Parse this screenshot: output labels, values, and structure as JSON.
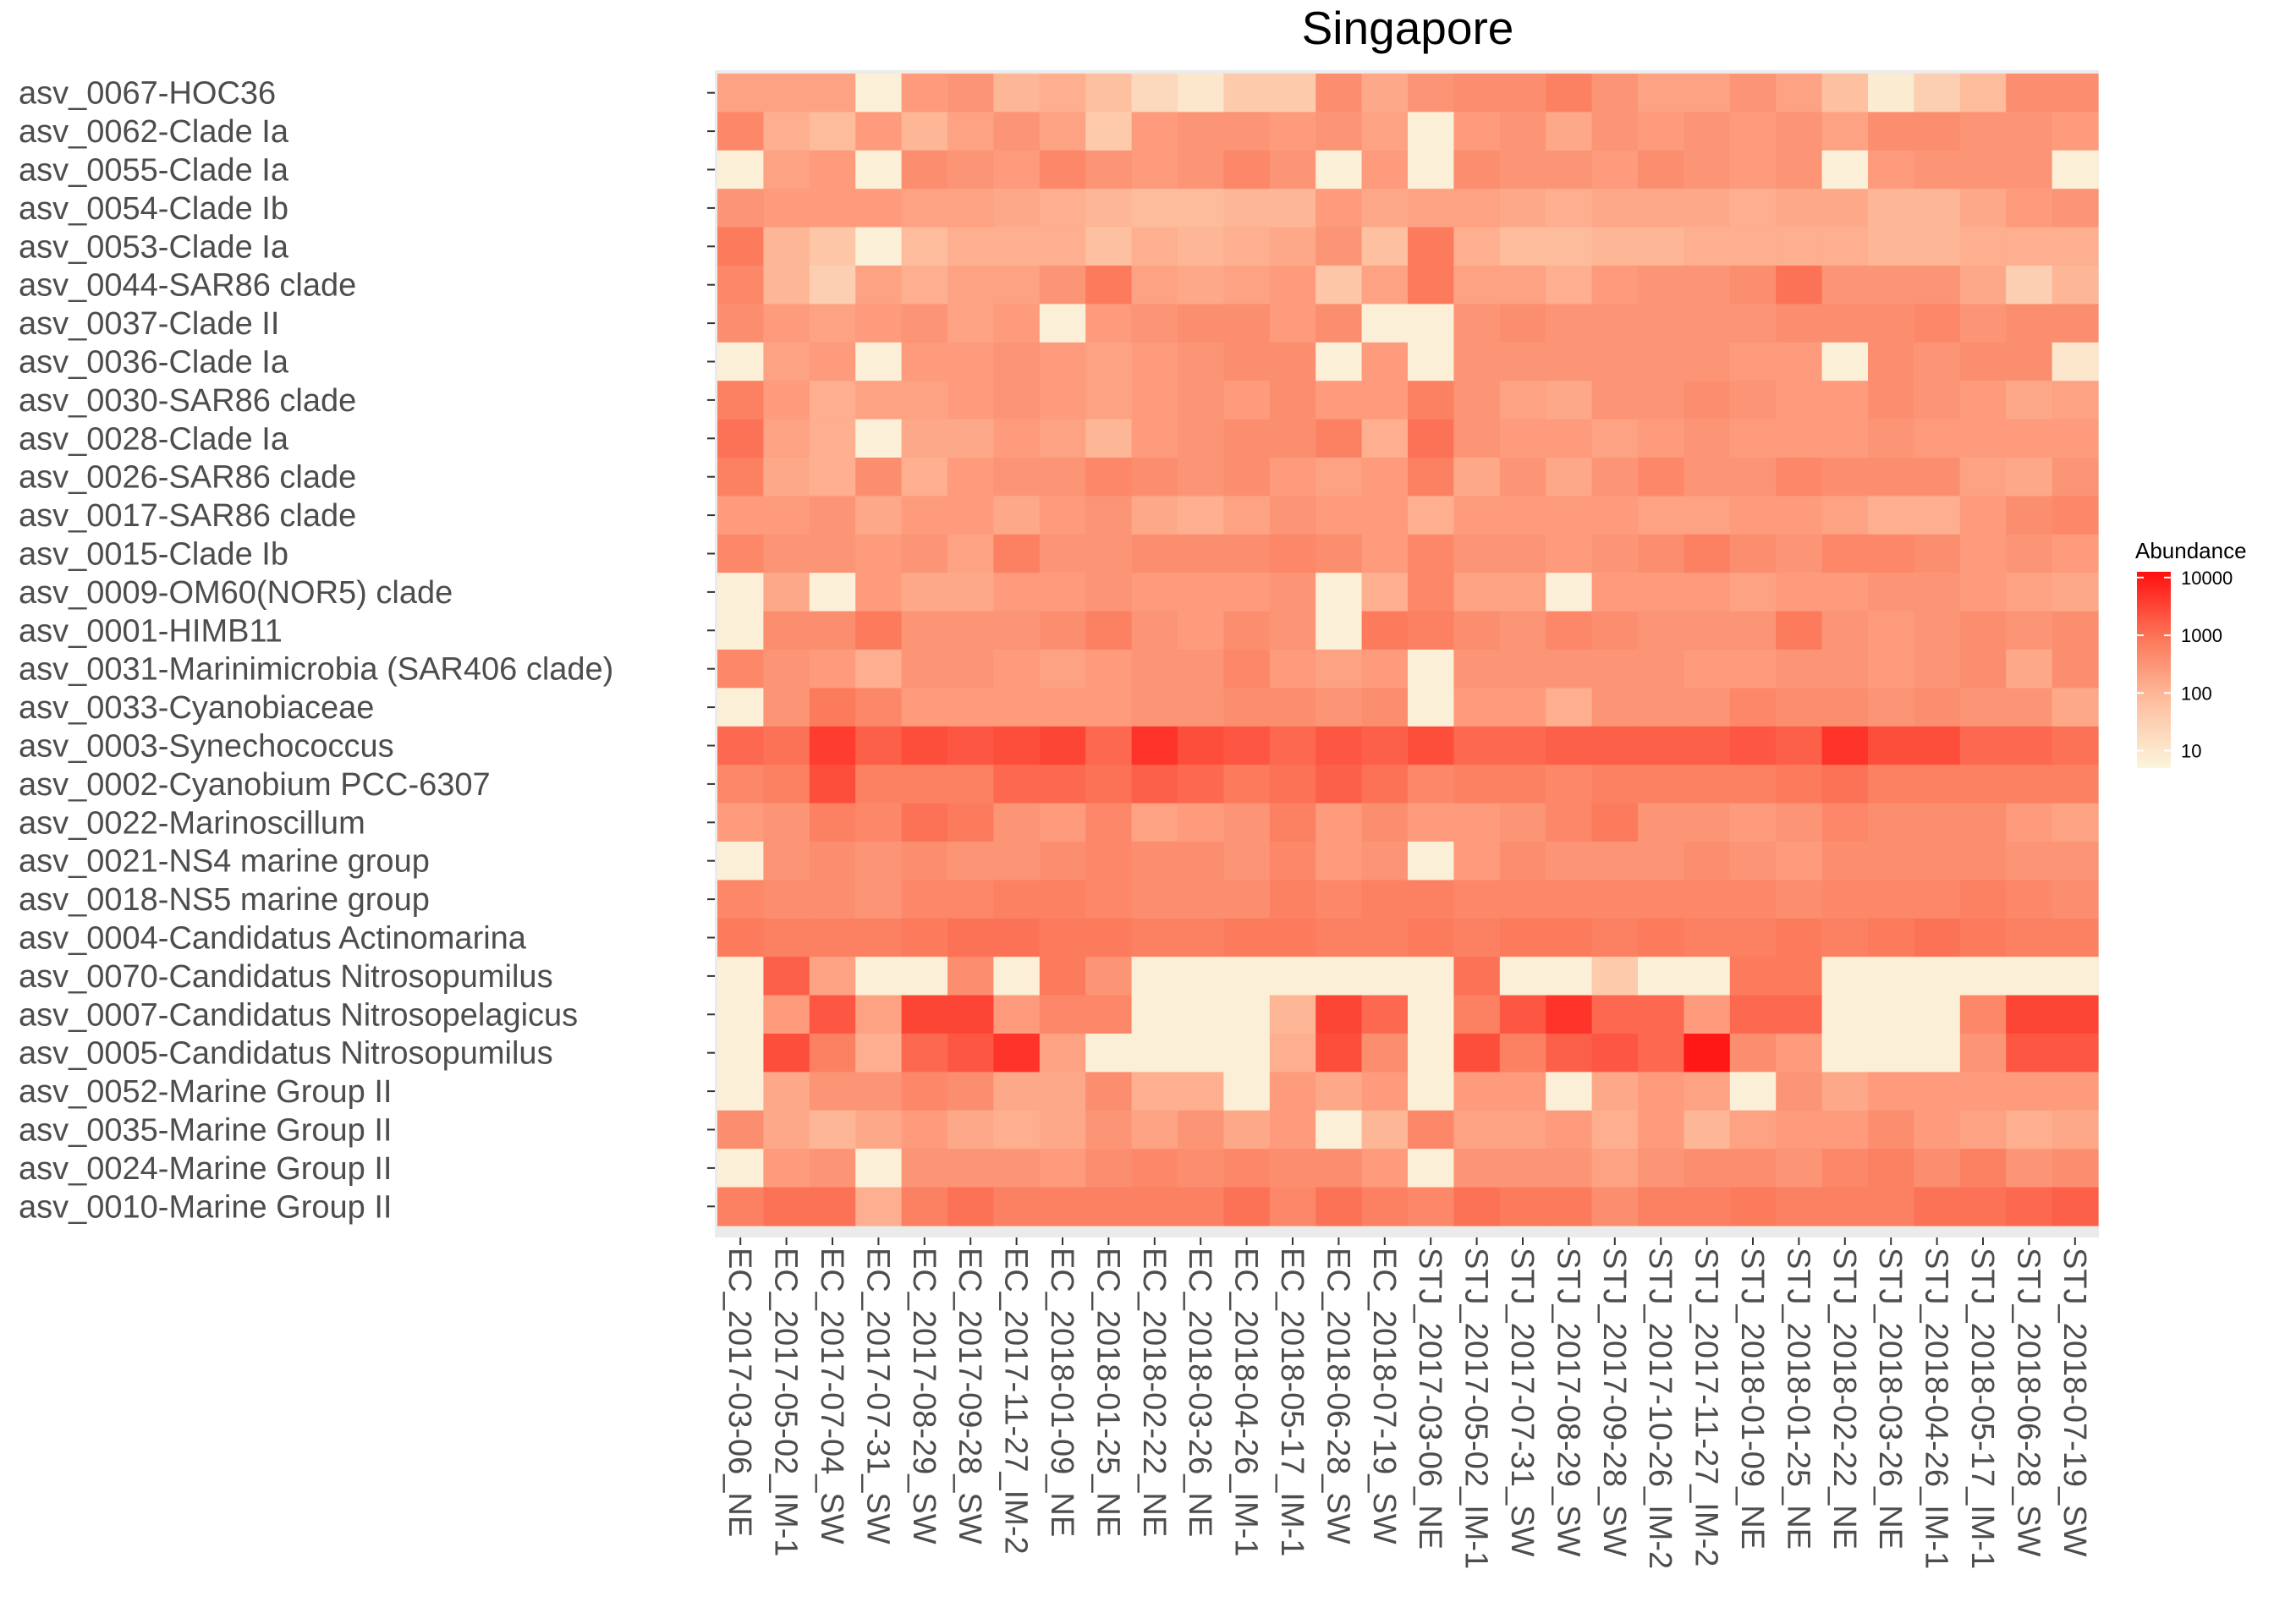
{
  "chart_data": {
    "type": "heatmap",
    "title": "Singapore",
    "xlabel": "",
    "ylabel": "",
    "rows": [
      "asv_0067-HOC36",
      "asv_0062-Clade Ia",
      "asv_0055-Clade Ia",
      "asv_0054-Clade Ib",
      "asv_0053-Clade Ia",
      "asv_0044-SAR86 clade",
      "asv_0037-Clade II",
      "asv_0036-Clade Ia",
      "asv_0030-SAR86 clade",
      "asv_0028-Clade Ia",
      "asv_0026-SAR86 clade",
      "asv_0017-SAR86 clade",
      "asv_0015-Clade Ib",
      "asv_0009-OM60(NOR5) clade",
      "asv_0001-HIMB11",
      "asv_0031-Marinimicrobia (SAR406 clade)",
      "asv_0033-Cyanobiaceae",
      "asv_0003-Synechococcus",
      "asv_0002-Cyanobium PCC-6307",
      "asv_0022-Marinoscillum",
      "asv_0021-NS4 marine group",
      "asv_0018-NS5 marine group",
      "asv_0004-Candidatus Actinomarina",
      "asv_0070-Candidatus Nitrosopumilus",
      "asv_0007-Candidatus Nitrosopelagicus",
      "asv_0005-Candidatus Nitrosopumilus",
      "asv_0052-Marine Group II",
      "asv_0035-Marine Group II",
      "asv_0024-Marine Group II",
      "asv_0010-Marine Group II"
    ],
    "columns": [
      "EC_2017-03-06_NE",
      "EC_2017-05-02_IM-1",
      "EC_2017-07-04_SW",
      "EC_2017-07-31_SW",
      "EC_2017-08-29_SW",
      "EC_2017-09-28_SW",
      "EC_2017-11-27_IM-2",
      "EC_2018-01-09_NE",
      "EC_2018-01-25_NE",
      "EC_2018-02-22_NE",
      "EC_2018-03-26_NE",
      "EC_2018-04-26_IM-1",
      "EC_2018-05-17_IM-1",
      "EC_2018-06-28_SW",
      "EC_2018-07-19_SW",
      "STJ_2017-03-06_NE",
      "STJ_2017-05-02_IM-1",
      "STJ_2017-07-31_SW",
      "STJ_2017-08-29_SW",
      "STJ_2017-09-28_SW",
      "STJ_2017-10-26_IM-2",
      "STJ_2017-11-27_IM-2",
      "STJ_2018-01-09_NE",
      "STJ_2018-01-25_NE",
      "STJ_2018-02-22_NE",
      "STJ_2018-03-26_NE",
      "STJ_2018-04-26_IM-1",
      "STJ_2018-05-17_IM-1",
      "STJ_2018-06-28_SW",
      "STJ_2018-07-19_SW"
    ],
    "values_log10": [
      [
        2.3,
        2.3,
        2.3,
        0.8,
        2.4,
        2.5,
        2.0,
        2.1,
        1.8,
        1.3,
        1.0,
        1.6,
        1.6,
        2.6,
        2.2,
        2.5,
        2.6,
        2.6,
        2.8,
        2.5,
        2.3,
        2.3,
        2.5,
        2.3,
        1.8,
        0.9,
        1.5,
        1.9,
        2.6,
        2.6
      ],
      [
        2.7,
        2.1,
        1.9,
        2.4,
        2.0,
        2.3,
        2.5,
        2.3,
        1.6,
        2.4,
        2.5,
        2.5,
        2.4,
        2.5,
        2.3,
        0.8,
        2.4,
        2.5,
        2.2,
        2.5,
        2.4,
        2.5,
        2.4,
        2.5,
        2.3,
        2.6,
        2.6,
        2.5,
        2.5,
        2.4
      ],
      [
        0.8,
        2.3,
        2.4,
        0.8,
        2.6,
        2.5,
        2.4,
        2.7,
        2.5,
        2.4,
        2.5,
        2.7,
        2.5,
        0.8,
        2.4,
        0.8,
        2.6,
        2.5,
        2.5,
        2.4,
        2.6,
        2.5,
        2.4,
        2.5,
        0.8,
        2.4,
        2.5,
        2.5,
        2.5,
        0.8
      ],
      [
        2.5,
        2.4,
        2.4,
        2.4,
        2.3,
        2.3,
        2.2,
        2.1,
        2.0,
        1.9,
        1.9,
        2.0,
        2.0,
        2.4,
        2.2,
        2.3,
        2.3,
        2.2,
        2.1,
        2.2,
        2.2,
        2.2,
        2.1,
        2.2,
        2.2,
        2.0,
        2.0,
        2.2,
        2.4,
        2.5
      ],
      [
        2.9,
        2.0,
        1.7,
        0.8,
        1.9,
        2.1,
        2.1,
        2.1,
        1.8,
        2.1,
        2.0,
        2.1,
        2.2,
        2.5,
        1.8,
        2.9,
        2.1,
        1.9,
        1.9,
        2.0,
        2.0,
        2.1,
        2.1,
        2.1,
        2.1,
        2.0,
        2.0,
        2.1,
        2.1,
        2.1
      ],
      [
        2.7,
        2.0,
        1.5,
        2.3,
        2.1,
        2.3,
        2.3,
        2.5,
        2.9,
        2.3,
        2.2,
        2.3,
        2.4,
        1.7,
        2.3,
        2.9,
        2.3,
        2.3,
        2.1,
        2.4,
        2.5,
        2.5,
        2.6,
        3.0,
        2.5,
        2.5,
        2.5,
        2.2,
        1.5,
        2.0
      ],
      [
        2.6,
        2.4,
        2.3,
        2.4,
        2.5,
        2.3,
        2.4,
        0.8,
        2.4,
        2.5,
        2.6,
        2.6,
        2.4,
        2.6,
        0.8,
        0.8,
        2.5,
        2.6,
        2.5,
        2.5,
        2.5,
        2.5,
        2.5,
        2.6,
        2.6,
        2.6,
        2.7,
        2.5,
        2.6,
        2.6
      ],
      [
        0.8,
        2.3,
        2.4,
        0.8,
        2.4,
        2.4,
        2.5,
        2.4,
        2.3,
        2.4,
        2.5,
        2.6,
        2.6,
        0.8,
        2.4,
        0.8,
        2.5,
        2.5,
        2.5,
        2.5,
        2.5,
        2.5,
        2.4,
        2.4,
        0.8,
        2.6,
        2.5,
        2.6,
        2.6,
        1.0
      ],
      [
        2.8,
        2.4,
        2.1,
        2.3,
        2.3,
        2.4,
        2.5,
        2.4,
        2.3,
        2.4,
        2.5,
        2.4,
        2.6,
        2.4,
        2.4,
        2.8,
        2.5,
        2.3,
        2.2,
        2.5,
        2.5,
        2.6,
        2.5,
        2.4,
        2.4,
        2.6,
        2.5,
        2.4,
        2.2,
        2.3
      ],
      [
        3.0,
        2.3,
        2.1,
        0.8,
        2.2,
        2.2,
        2.4,
        2.3,
        2.0,
        2.4,
        2.5,
        2.6,
        2.6,
        2.8,
        2.1,
        3.0,
        2.5,
        2.4,
        2.4,
        2.3,
        2.4,
        2.5,
        2.4,
        2.4,
        2.4,
        2.5,
        2.4,
        2.4,
        2.4,
        2.4
      ],
      [
        2.8,
        2.2,
        2.1,
        2.6,
        2.1,
        2.4,
        2.5,
        2.5,
        2.7,
        2.6,
        2.5,
        2.6,
        2.4,
        2.3,
        2.4,
        2.8,
        2.2,
        2.5,
        2.2,
        2.5,
        2.7,
        2.5,
        2.5,
        2.7,
        2.6,
        2.6,
        2.6,
        2.3,
        2.2,
        2.5
      ],
      [
        2.4,
        2.4,
        2.5,
        2.2,
        2.4,
        2.4,
        2.2,
        2.4,
        2.5,
        2.2,
        2.1,
        2.3,
        2.5,
        2.4,
        2.4,
        2.1,
        2.4,
        2.4,
        2.4,
        2.4,
        2.3,
        2.3,
        2.4,
        2.4,
        2.3,
        2.1,
        2.1,
        2.4,
        2.6,
        2.7
      ],
      [
        2.7,
        2.5,
        2.5,
        2.4,
        2.5,
        2.3,
        2.8,
        2.5,
        2.5,
        2.6,
        2.6,
        2.6,
        2.7,
        2.6,
        2.4,
        2.7,
        2.5,
        2.5,
        2.4,
        2.5,
        2.6,
        2.8,
        2.6,
        2.5,
        2.7,
        2.7,
        2.6,
        2.4,
        2.5,
        2.4
      ],
      [
        0.8,
        2.2,
        0.8,
        2.4,
        2.2,
        2.2,
        2.4,
        2.4,
        2.5,
        2.4,
        2.4,
        2.4,
        2.5,
        0.8,
        2.1,
        2.7,
        2.3,
        2.3,
        0.8,
        2.4,
        2.4,
        2.4,
        2.3,
        2.4,
        2.4,
        2.5,
        2.5,
        2.4,
        2.3,
        2.2
      ],
      [
        0.8,
        2.6,
        2.6,
        2.9,
        2.5,
        2.5,
        2.5,
        2.6,
        2.8,
        2.5,
        2.4,
        2.6,
        2.5,
        0.8,
        2.9,
        2.8,
        2.6,
        2.5,
        2.7,
        2.6,
        2.5,
        2.5,
        2.5,
        2.9,
        2.5,
        2.4,
        2.5,
        2.6,
        2.5,
        2.6
      ],
      [
        2.7,
        2.5,
        2.4,
        2.1,
        2.5,
        2.5,
        2.4,
        2.3,
        2.4,
        2.5,
        2.5,
        2.7,
        2.4,
        2.3,
        2.4,
        0.8,
        2.5,
        2.5,
        2.5,
        2.5,
        2.5,
        2.4,
        2.4,
        2.5,
        2.5,
        2.4,
        2.5,
        2.6,
        2.2,
        2.6
      ],
      [
        0.8,
        2.5,
        2.9,
        2.7,
        2.4,
        2.4,
        2.4,
        2.4,
        2.4,
        2.5,
        2.5,
        2.6,
        2.6,
        2.5,
        2.6,
        0.8,
        2.4,
        2.4,
        2.1,
        2.5,
        2.5,
        2.5,
        2.7,
        2.6,
        2.6,
        2.5,
        2.6,
        2.5,
        2.5,
        2.2
      ],
      [
        3.1,
        3.0,
        3.6,
        3.2,
        3.4,
        3.3,
        3.4,
        3.5,
        3.1,
        3.7,
        3.4,
        3.3,
        3.1,
        3.3,
        3.2,
        3.4,
        3.1,
        3.1,
        3.2,
        3.2,
        3.2,
        3.2,
        3.3,
        3.2,
        3.7,
        3.4,
        3.4,
        3.1,
        3.1,
        3.0
      ],
      [
        2.7,
        2.8,
        3.4,
        2.8,
        2.8,
        2.8,
        3.1,
        3.1,
        3.0,
        3.2,
        3.1,
        2.9,
        3.0,
        3.2,
        3.0,
        2.7,
        2.8,
        2.8,
        2.7,
        2.8,
        2.8,
        2.8,
        2.8,
        2.9,
        3.0,
        2.8,
        2.8,
        2.8,
        2.8,
        2.8
      ],
      [
        2.4,
        2.5,
        2.8,
        2.7,
        3.0,
        2.9,
        2.5,
        2.4,
        2.7,
        2.3,
        2.4,
        2.5,
        2.8,
        2.4,
        2.6,
        2.4,
        2.4,
        2.5,
        2.7,
        2.9,
        2.5,
        2.5,
        2.4,
        2.5,
        2.7,
        2.6,
        2.6,
        2.6,
        2.4,
        2.3
      ],
      [
        0.8,
        2.5,
        2.6,
        2.5,
        2.6,
        2.5,
        2.5,
        2.6,
        2.7,
        2.6,
        2.6,
        2.5,
        2.7,
        2.4,
        2.5,
        0.8,
        2.4,
        2.6,
        2.5,
        2.5,
        2.5,
        2.6,
        2.5,
        2.4,
        2.6,
        2.6,
        2.6,
        2.6,
        2.5,
        2.5
      ],
      [
        2.7,
        2.6,
        2.6,
        2.5,
        2.7,
        2.7,
        2.8,
        2.8,
        2.7,
        2.6,
        2.6,
        2.6,
        2.8,
        2.7,
        2.8,
        2.8,
        2.7,
        2.7,
        2.7,
        2.7,
        2.7,
        2.7,
        2.7,
        2.6,
        2.7,
        2.7,
        2.7,
        2.8,
        2.7,
        2.6
      ],
      [
        2.9,
        2.8,
        2.8,
        2.8,
        2.9,
        3.0,
        3.0,
        2.9,
        2.9,
        2.8,
        2.8,
        2.9,
        2.9,
        2.8,
        2.8,
        2.9,
        2.8,
        2.9,
        2.9,
        2.8,
        2.9,
        2.8,
        2.8,
        2.9,
        2.8,
        2.9,
        3.0,
        2.9,
        2.8,
        2.8
      ],
      [
        0.8,
        3.2,
        2.3,
        0.8,
        0.8,
        2.6,
        0.8,
        2.9,
        2.5,
        0.8,
        0.8,
        0.8,
        0.8,
        0.8,
        0.8,
        0.8,
        3.0,
        0.8,
        0.8,
        1.6,
        0.8,
        0.8,
        2.9,
        2.9,
        0.8,
        0.8,
        0.8,
        0.8,
        0.8,
        0.8
      ],
      [
        0.8,
        2.4,
        3.3,
        2.3,
        3.5,
        3.5,
        2.4,
        2.7,
        2.7,
        0.8,
        0.8,
        0.8,
        2.0,
        3.5,
        3.1,
        0.8,
        2.8,
        3.3,
        3.7,
        3.1,
        3.1,
        2.4,
        3.1,
        3.1,
        0.8,
        0.8,
        0.8,
        2.7,
        3.5,
        3.5
      ],
      [
        0.8,
        3.4,
        2.8,
        2.1,
        3.1,
        3.3,
        3.7,
        2.3,
        0.8,
        0.8,
        0.8,
        0.8,
        2.1,
        3.4,
        2.6,
        0.8,
        3.4,
        2.8,
        3.2,
        3.3,
        3.1,
        4.0,
        2.6,
        2.4,
        0.8,
        0.8,
        0.8,
        2.5,
        3.3,
        3.3
      ],
      [
        0.8,
        2.2,
        2.5,
        2.5,
        2.7,
        2.6,
        2.2,
        2.2,
        2.6,
        2.1,
        2.1,
        0.8,
        2.4,
        2.2,
        2.4,
        0.8,
        2.4,
        2.4,
        0.8,
        2.2,
        2.4,
        2.3,
        0.8,
        2.5,
        2.2,
        2.4,
        2.4,
        2.4,
        2.4,
        2.4
      ],
      [
        2.6,
        2.2,
        2.0,
        2.2,
        2.4,
        2.2,
        2.1,
        2.2,
        2.5,
        2.3,
        2.5,
        2.2,
        2.4,
        0.8,
        2.0,
        2.7,
        2.3,
        2.3,
        2.4,
        2.1,
        2.4,
        2.0,
        2.3,
        2.4,
        2.4,
        2.6,
        2.4,
        2.3,
        2.1,
        2.2
      ],
      [
        0.8,
        2.4,
        2.5,
        0.8,
        2.5,
        2.5,
        2.5,
        2.4,
        2.6,
        2.7,
        2.6,
        2.7,
        2.6,
        2.6,
        2.4,
        0.8,
        2.5,
        2.5,
        2.5,
        2.3,
        2.5,
        2.6,
        2.6,
        2.5,
        2.7,
        2.8,
        2.6,
        2.8,
        2.5,
        2.6
      ],
      [
        2.8,
        3.0,
        3.0,
        2.1,
        2.8,
        3.0,
        2.8,
        2.8,
        2.8,
        2.8,
        2.8,
        3.0,
        2.7,
        3.0,
        2.8,
        2.7,
        3.0,
        2.9,
        2.9,
        2.6,
        2.8,
        2.8,
        2.9,
        2.8,
        2.8,
        2.8,
        3.0,
        3.0,
        3.1,
        3.2
      ]
    ],
    "value_scale": "log10",
    "legend": {
      "title": "Abundance",
      "ticks": [
        "10",
        "100",
        "1000",
        "10000"
      ],
      "position": "right"
    },
    "colors": {
      "low": "#fbf5dc",
      "mid": "#fd8a6b",
      "high": "#ff0f0f",
      "panel_background": "#ebebeb"
    }
  }
}
